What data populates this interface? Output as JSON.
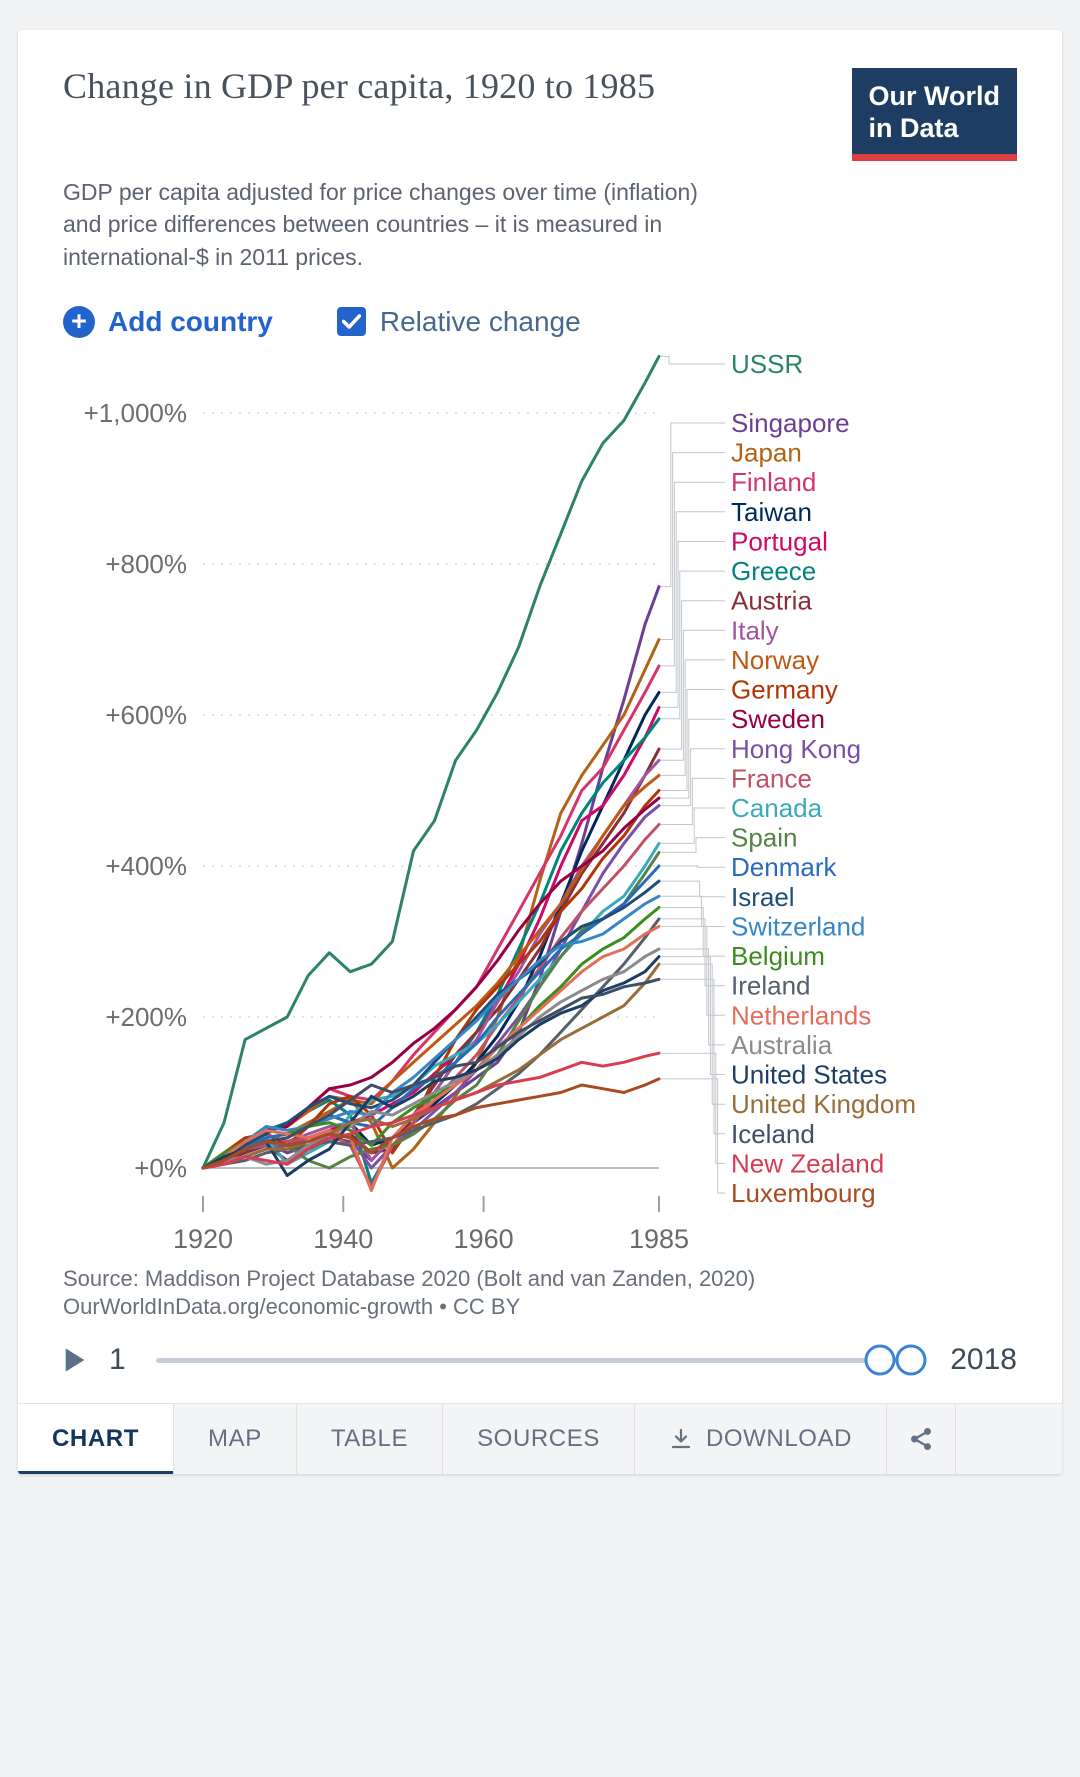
{
  "header": {
    "title": "Change in GDP per capita, 1920 to 1985",
    "subtitle": "GDP per capita adjusted for price changes over time (inflation) and price differences between countries – it is measured in international-$ in 2011 prices.",
    "logo": {
      "line1": "Our World",
      "line2": "in Data"
    }
  },
  "controls": {
    "add_country_label": "Add country",
    "relative_change_label": "Relative change",
    "relative_change_checked": true
  },
  "colors": {
    "accent_blue": "#2364cc",
    "logo_background": "#1d3d63",
    "logo_red": "#dc3d43",
    "active_tab_text": "#15365c"
  },
  "chart_data": {
    "type": "line",
    "title": "Change in GDP per capita, 1920 to 1985",
    "xlabel": "",
    "ylabel": "",
    "grid": true,
    "legend_position": "right",
    "xlim": [
      1920,
      1985
    ],
    "ylim": [
      -60,
      1120
    ],
    "x_ticks": [
      {
        "value": 1920,
        "label": "1920"
      },
      {
        "value": 1940,
        "label": "1940"
      },
      {
        "value": 1960,
        "label": "1960"
      },
      {
        "value": 1985,
        "label": "1985"
      }
    ],
    "y_ticks": [
      {
        "value": 0,
        "label": "+0%"
      },
      {
        "value": 200,
        "label": "+200%"
      },
      {
        "value": 400,
        "label": "+400%"
      },
      {
        "value": 600,
        "label": "+600%"
      },
      {
        "value": 800,
        "label": "+800%"
      },
      {
        "value": 1000,
        "label": "+1,000%"
      }
    ],
    "x": [
      1920,
      1923,
      1926,
      1929,
      1932,
      1935,
      1938,
      1941,
      1944,
      1947,
      1950,
      1953,
      1956,
      1959,
      1962,
      1965,
      1968,
      1971,
      1974,
      1977,
      1980,
      1983,
      1985
    ],
    "series": [
      {
        "name": "USSR",
        "color": "#2C8465",
        "values": [
          0,
          60,
          170,
          185,
          200,
          255,
          285,
          260,
          270,
          300,
          420,
          460,
          540,
          580,
          630,
          690,
          770,
          840,
          910,
          960,
          990,
          1040,
          1075
        ]
      },
      {
        "name": "Singapore",
        "color": "#6D3E91",
        "values": [
          0,
          10,
          25,
          35,
          20,
          30,
          40,
          35,
          10,
          40,
          60,
          80,
          100,
          120,
          140,
          180,
          250,
          340,
          430,
          530,
          620,
          720,
          770
        ]
      },
      {
        "name": "Japan",
        "color": "#B16214",
        "values": [
          0,
          15,
          25,
          40,
          45,
          60,
          75,
          90,
          60,
          0,
          25,
          60,
          95,
          140,
          200,
          280,
          380,
          470,
          520,
          560,
          600,
          660,
          700
        ]
      },
      {
        "name": "Finland",
        "color": "#D6356C",
        "values": [
          0,
          15,
          35,
          50,
          55,
          80,
          105,
          95,
          90,
          115,
          150,
          180,
          210,
          240,
          290,
          340,
          390,
          440,
          500,
          530,
          580,
          630,
          665
        ]
      },
      {
        "name": "Taiwan",
        "color": "#00295B",
        "values": [
          0,
          10,
          20,
          35,
          40,
          55,
          70,
          60,
          30,
          40,
          60,
          85,
          110,
          140,
          175,
          220,
          280,
          350,
          420,
          480,
          540,
          600,
          630
        ]
      },
      {
        "name": "Portugal",
        "color": "#CF0A66",
        "values": [
          0,
          5,
          15,
          25,
          30,
          40,
          50,
          60,
          70,
          85,
          100,
          125,
          150,
          180,
          220,
          270,
          330,
          400,
          460,
          480,
          520,
          570,
          610
        ]
      },
      {
        "name": "Greece",
        "color": "#00847E",
        "values": [
          0,
          20,
          35,
          50,
          60,
          75,
          90,
          70,
          -20,
          30,
          60,
          100,
          140,
          180,
          230,
          290,
          350,
          420,
          470,
          510,
          540,
          570,
          595
        ]
      },
      {
        "name": "Austria",
        "color": "#883039",
        "values": [
          0,
          10,
          20,
          30,
          10,
          25,
          35,
          45,
          20,
          25,
          70,
          110,
          150,
          180,
          210,
          250,
          290,
          340,
          390,
          430,
          470,
          520,
          555
        ]
      },
      {
        "name": "Italy",
        "color": "#A2559C",
        "values": [
          0,
          10,
          25,
          30,
          35,
          45,
          55,
          60,
          10,
          40,
          70,
          100,
          140,
          170,
          220,
          260,
          310,
          350,
          400,
          440,
          480,
          520,
          540
        ]
      },
      {
        "name": "Norway",
        "color": "#BE5915",
        "values": [
          0,
          10,
          30,
          50,
          55,
          75,
          95,
          90,
          85,
          115,
          140,
          165,
          190,
          215,
          245,
          280,
          315,
          350,
          395,
          440,
          480,
          505,
          520
        ]
      },
      {
        "name": "Germany",
        "color": "#B13507",
        "values": [
          0,
          20,
          40,
          45,
          30,
          55,
          85,
          95,
          70,
          20,
          60,
          120,
          170,
          210,
          240,
          270,
          300,
          340,
          370,
          410,
          440,
          480,
          500
        ]
      },
      {
        "name": "Sweden",
        "color": "#970046",
        "values": [
          0,
          15,
          30,
          50,
          55,
          80,
          105,
          110,
          120,
          140,
          165,
          185,
          210,
          240,
          275,
          315,
          350,
          380,
          400,
          420,
          450,
          475,
          490
        ]
      },
      {
        "name": "Hong Kong",
        "color": "#7B4FA6",
        "values": [
          0,
          5,
          15,
          25,
          30,
          40,
          50,
          40,
          0,
          30,
          50,
          75,
          100,
          130,
          165,
          200,
          240,
          290,
          340,
          390,
          430,
          465,
          480
        ]
      },
      {
        "name": "France",
        "color": "#C15065",
        "values": [
          0,
          15,
          35,
          45,
          35,
          40,
          45,
          30,
          -25,
          30,
          60,
          90,
          120,
          150,
          190,
          225,
          265,
          305,
          340,
          370,
          400,
          435,
          455
        ]
      },
      {
        "name": "Canada",
        "color": "#38AABA",
        "values": [
          0,
          10,
          30,
          40,
          5,
          20,
          35,
          70,
          90,
          95,
          110,
          135,
          150,
          165,
          190,
          220,
          250,
          280,
          310,
          340,
          360,
          400,
          430
        ]
      },
      {
        "name": "Spain",
        "color": "#578145",
        "values": [
          0,
          10,
          25,
          35,
          30,
          10,
          0,
          15,
          25,
          30,
          45,
          65,
          90,
          110,
          150,
          195,
          240,
          280,
          315,
          330,
          350,
          390,
          418
        ]
      },
      {
        "name": "Denmark",
        "color": "#286BBB",
        "values": [
          0,
          10,
          25,
          40,
          45,
          55,
          70,
          60,
          55,
          80,
          105,
          120,
          140,
          165,
          200,
          230,
          260,
          290,
          310,
          330,
          350,
          380,
          400
        ]
      },
      {
        "name": "Israel",
        "color": "#1F4E79",
        "values": [
          0,
          15,
          30,
          45,
          60,
          80,
          95,
          85,
          80,
          90,
          110,
          140,
          170,
          200,
          230,
          250,
          270,
          300,
          320,
          330,
          345,
          365,
          380
        ]
      },
      {
        "name": "Switzerland",
        "color": "#3787C6",
        "values": [
          0,
          15,
          35,
          55,
          50,
          55,
          65,
          75,
          70,
          100,
          120,
          145,
          170,
          195,
          225,
          250,
          275,
          295,
          300,
          310,
          330,
          350,
          360
        ]
      },
      {
        "name": "Belgium",
        "color": "#3B8E1D",
        "values": [
          0,
          20,
          35,
          50,
          45,
          55,
          60,
          50,
          30,
          60,
          80,
          95,
          110,
          130,
          160,
          185,
          215,
          240,
          270,
          290,
          305,
          330,
          345
        ]
      },
      {
        "name": "Ireland",
        "color": "#55606C",
        "values": [
          0,
          5,
          10,
          20,
          25,
          30,
          35,
          30,
          35,
          40,
          50,
          60,
          70,
          85,
          105,
          125,
          150,
          180,
          210,
          240,
          270,
          305,
          330
        ]
      },
      {
        "name": "Netherlands",
        "color": "#E56E5A",
        "values": [
          0,
          15,
          35,
          50,
          45,
          40,
          50,
          40,
          -30,
          40,
          70,
          90,
          110,
          130,
          160,
          185,
          210,
          235,
          260,
          280,
          290,
          310,
          320
        ]
      },
      {
        "name": "Australia",
        "color": "#8B8B8B",
        "values": [
          0,
          10,
          15,
          5,
          10,
          30,
          45,
          55,
          75,
          70,
          85,
          100,
          115,
          130,
          150,
          175,
          200,
          220,
          235,
          250,
          260,
          280,
          290
        ]
      },
      {
        "name": "United States",
        "color": "#1D3D63",
        "values": [
          0,
          15,
          25,
          35,
          -10,
          10,
          25,
          60,
          95,
          80,
          95,
          115,
          120,
          130,
          145,
          170,
          190,
          205,
          215,
          235,
          245,
          260,
          280
        ]
      },
      {
        "name": "United Kingdom",
        "color": "#996D39",
        "values": [
          0,
          5,
          15,
          25,
          25,
          35,
          45,
          60,
          65,
          55,
          65,
          80,
          90,
          100,
          115,
          130,
          150,
          170,
          185,
          200,
          215,
          245,
          270
        ]
      },
      {
        "name": "Iceland",
        "color": "#3F4E66",
        "values": [
          0,
          10,
          25,
          35,
          40,
          55,
          70,
          90,
          110,
          100,
          110,
          120,
          135,
          140,
          160,
          180,
          195,
          210,
          225,
          230,
          240,
          245,
          250
        ]
      },
      {
        "name": "New Zealand",
        "color": "#D73C50",
        "values": [
          0,
          5,
          15,
          10,
          5,
          25,
          40,
          45,
          55,
          60,
          70,
          80,
          90,
          100,
          110,
          115,
          120,
          130,
          140,
          135,
          140,
          148,
          152
        ]
      },
      {
        "name": "Luxembourg",
        "color": "#A84B22",
        "values": [
          0,
          10,
          25,
          35,
          30,
          35,
          45,
          40,
          20,
          40,
          55,
          65,
          70,
          80,
          85,
          90,
          95,
          100,
          110,
          105,
          100,
          110,
          118
        ]
      }
    ]
  },
  "footer": {
    "source_line1": "Source: Maddison Project Database 2020 (Bolt and van Zanden, 2020)",
    "source_line2": "OurWorldInData.org/economic-growth • CC BY"
  },
  "timeline": {
    "start_label": "1",
    "end_label": "2018"
  },
  "tabs": {
    "items": [
      {
        "label": "CHART",
        "active": true
      },
      {
        "label": "MAP",
        "active": false
      },
      {
        "label": "TABLE",
        "active": false
      },
      {
        "label": "SOURCES",
        "active": false
      },
      {
        "label": "DOWNLOAD",
        "active": false,
        "icon": "download-icon"
      }
    ],
    "share_icon": "share-icon"
  }
}
